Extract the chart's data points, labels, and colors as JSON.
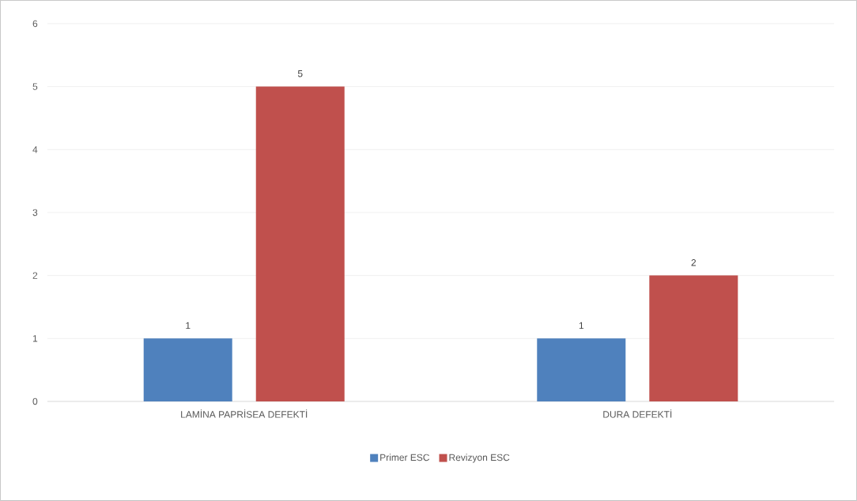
{
  "chart_data": {
    "type": "bar",
    "categories": [
      "LAMİNA PAPRİSEA DEFEKTİ",
      "DURA DEFEKTİ"
    ],
    "series": [
      {
        "name": "Primer ESC",
        "color": "#4f81bd",
        "values": [
          1,
          1
        ]
      },
      {
        "name": "Revizyon ESC",
        "color": "#c0504d",
        "values": [
          5,
          2
        ]
      }
    ],
    "ylim": [
      0,
      6
    ],
    "yticks": [
      0,
      1,
      2,
      3,
      4,
      5,
      6
    ],
    "grid": "y",
    "legend": "bottom",
    "data_labels": true
  }
}
